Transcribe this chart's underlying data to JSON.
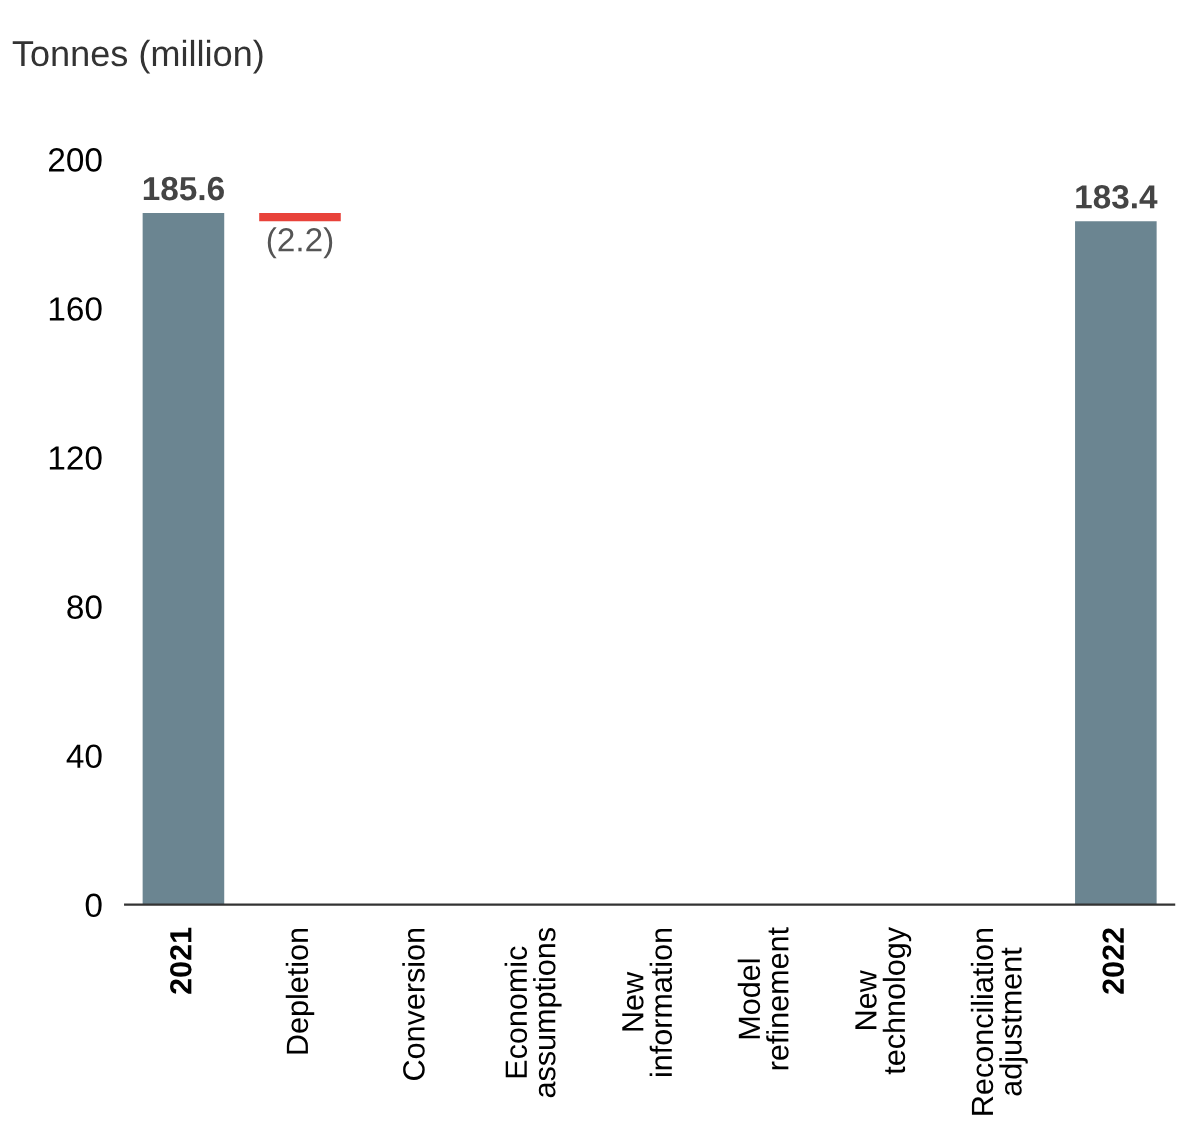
{
  "chart_data": {
    "type": "bar",
    "ylabel": "Tonnes (million)",
    "categories": [
      "2021",
      "Depletion",
      "Conversion",
      "Economic\nassumptions",
      "New\ninformation",
      "Model\nrefinement",
      "New\ntechnology",
      "Reconciliation\nadjustment",
      "2022"
    ],
    "values": [
      185.6,
      -2.2,
      null,
      null,
      null,
      null,
      null,
      null,
      183.4
    ],
    "base": [
      0,
      185.6,
      null,
      null,
      null,
      null,
      null,
      null,
      0
    ],
    "colors": [
      "#6b8591",
      "#e8423a",
      null,
      null,
      null,
      null,
      null,
      null,
      "#6b8591"
    ],
    "value_labels": [
      "185.6",
      "(2.2)",
      null,
      null,
      null,
      null,
      null,
      null,
      "183.4"
    ],
    "ylim": [
      0,
      200
    ],
    "yticks": [
      0,
      40,
      80,
      120,
      160,
      200
    ],
    "grid": false
  }
}
